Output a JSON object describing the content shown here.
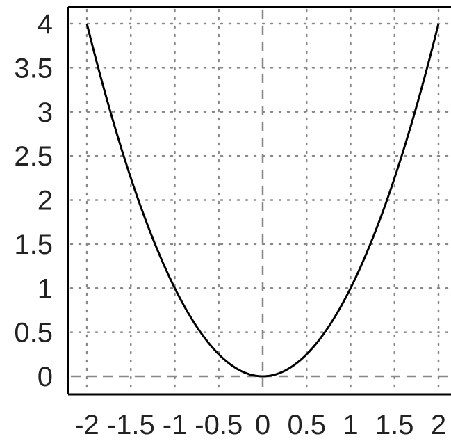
{
  "chart_data": {
    "type": "line",
    "title": "",
    "xlabel": "",
    "ylabel": "",
    "xlim": [
      -2,
      2
    ],
    "ylim": [
      0,
      4
    ],
    "x_ticks": [
      -2,
      -1.5,
      -1,
      -0.5,
      0,
      0.5,
      1,
      1.5,
      2
    ],
    "x_tick_labels": [
      "-2",
      "-1.5",
      "-1",
      "-0.5",
      "0",
      "0.5",
      "1",
      "1.5",
      "2"
    ],
    "y_ticks": [
      0,
      0.5,
      1,
      1.5,
      2,
      2.5,
      3,
      3.5,
      4
    ],
    "y_tick_labels": [
      "0",
      "0.5",
      "1",
      "1.5",
      "2",
      "2.5",
      "3",
      "3.5",
      "4"
    ],
    "grid": true,
    "grid_style": "dotted",
    "axis_lines_style": "dashed",
    "series": [
      {
        "x": [
          -2,
          -1.75,
          -1.5,
          -1.25,
          -1,
          -0.75,
          -0.5,
          -0.25,
          0,
          0.25,
          0.5,
          0.75,
          1,
          1.25,
          1.5,
          1.75,
          2
        ],
        "y": [
          4,
          3.0625,
          2.25,
          1.5625,
          1,
          0.5625,
          0.25,
          0.0625,
          0,
          0.0625,
          0.25,
          0.5625,
          1,
          1.5625,
          2.25,
          3.0625,
          4
        ],
        "color": "#000000"
      }
    ]
  },
  "colors": {
    "line": "#000000",
    "grid": "#888888",
    "axis_zero": "#888888",
    "frame": "#000000",
    "text": "#222222"
  }
}
